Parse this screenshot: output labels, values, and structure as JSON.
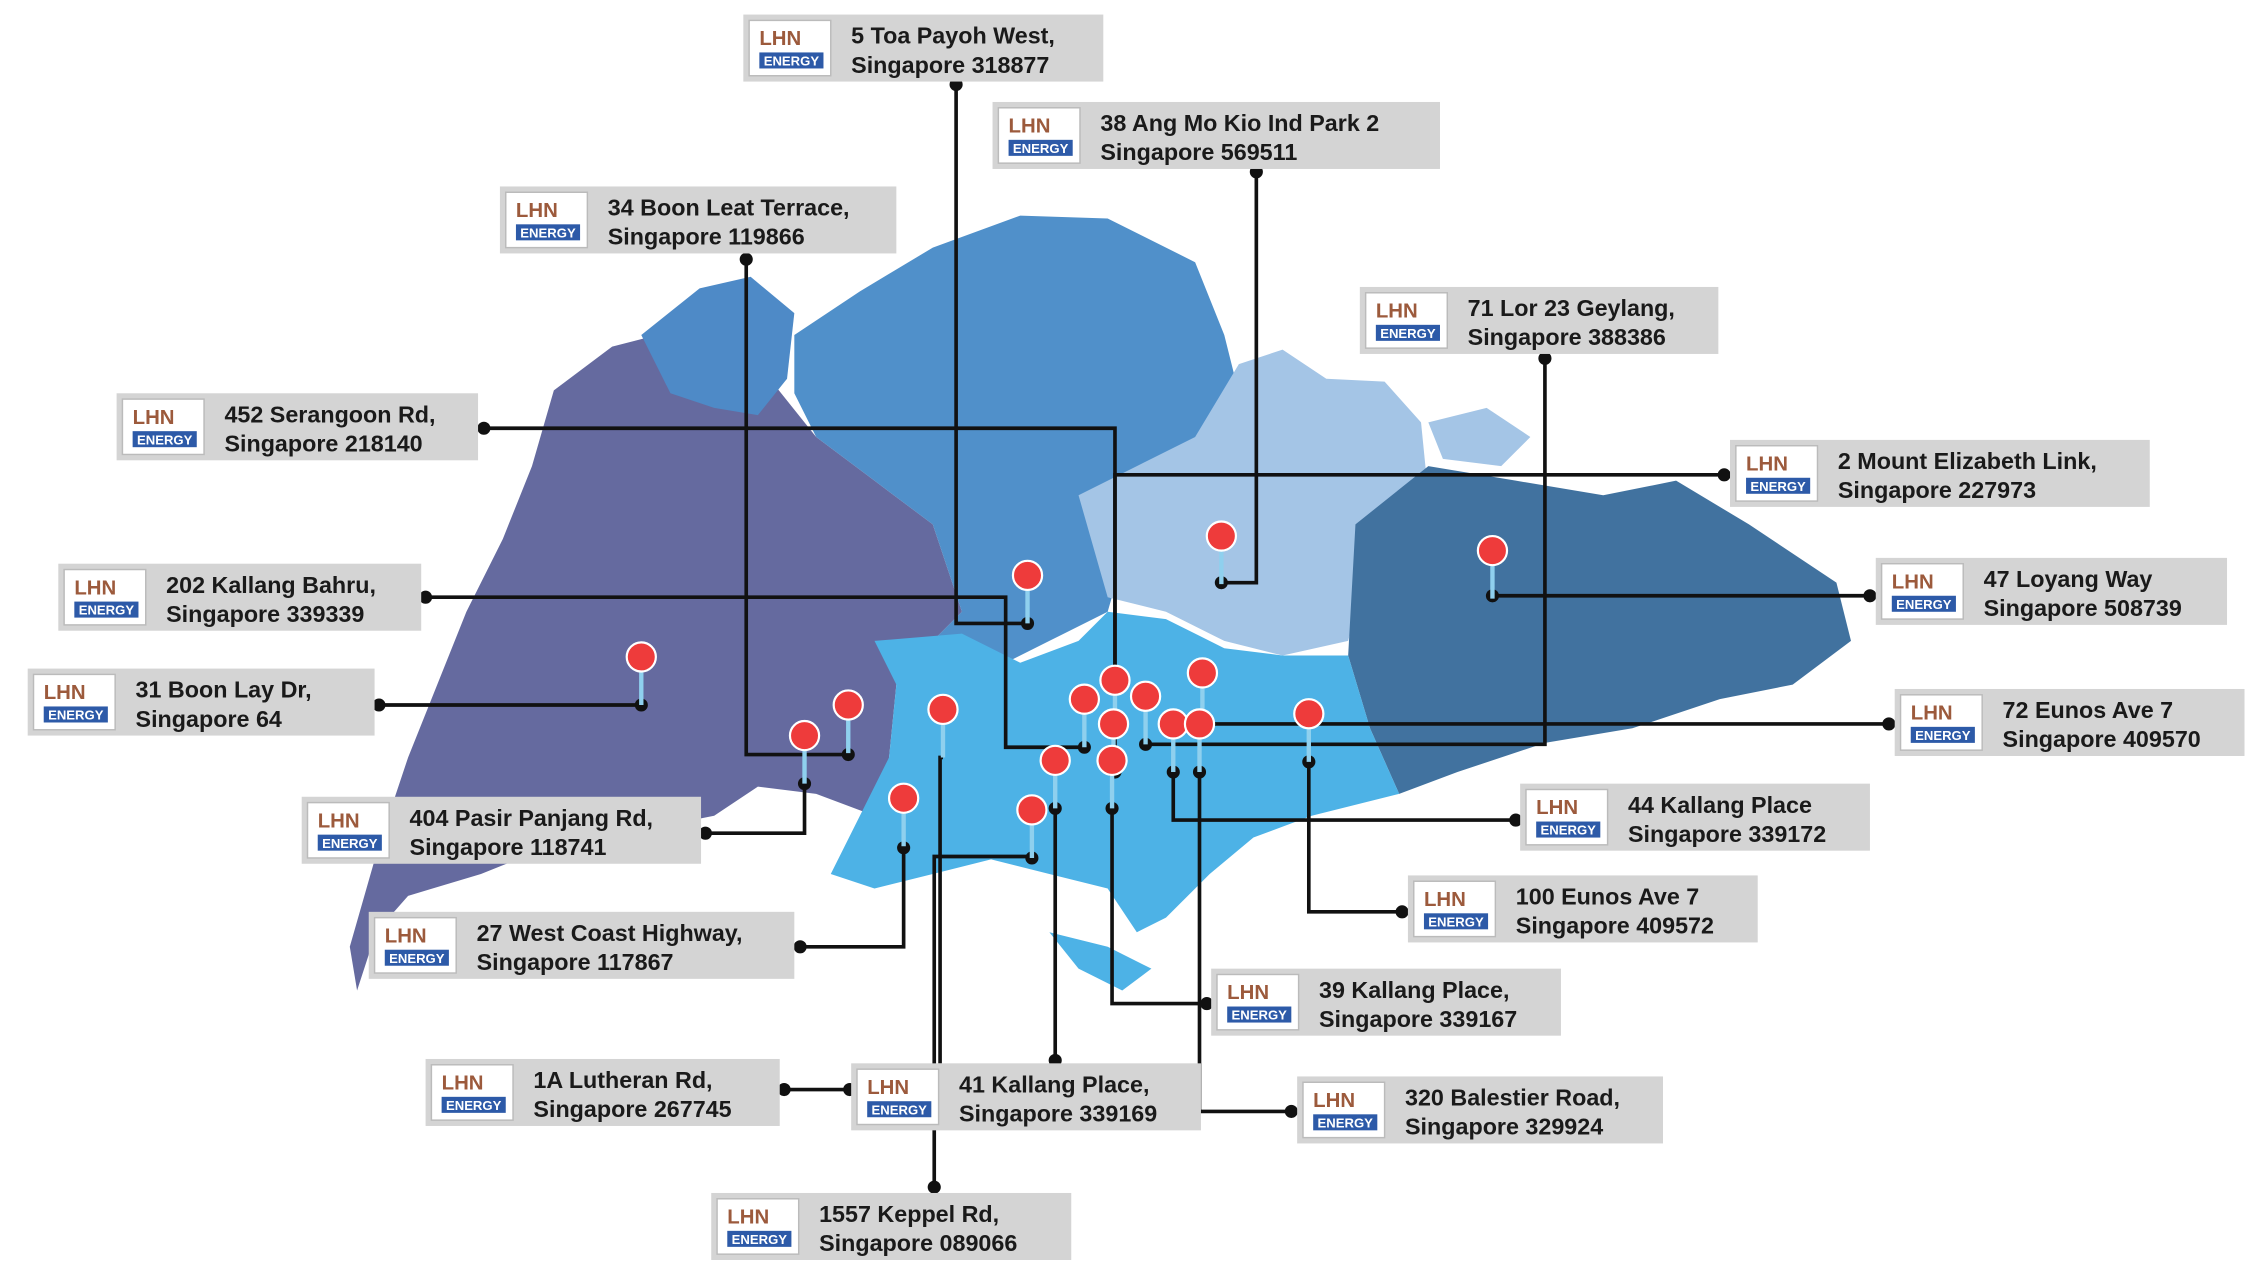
{
  "logo": {
    "top": "LHN",
    "bottom": "ENERGY"
  },
  "locations": [
    {
      "line1": "5 Toa Payoh West,",
      "line2": "Singapore 318877"
    },
    {
      "line1": "38 Ang Mo Kio Ind Park 2",
      "line2": "Singapore 569511"
    },
    {
      "line1": "34 Boon Leat Terrace,",
      "line2": "Singapore 119866"
    },
    {
      "line1": "71 Lor 23 Geylang,",
      "line2": "Singapore 388386"
    },
    {
      "line1": "452 Serangoon Rd,",
      "line2": "Singapore 218140"
    },
    {
      "line1": "2 Mount Elizabeth Link,",
      "line2": "Singapore 227973"
    },
    {
      "line1": "202 Kallang Bahru,",
      "line2": "Singapore 339339"
    },
    {
      "line1": "47 Loyang Way",
      "line2": "Singapore 508739"
    },
    {
      "line1": "31 Boon Lay Dr,",
      "line2": "Singapore 64"
    },
    {
      "line1": "72 Eunos Ave 7",
      "line2": "Singapore 409570"
    },
    {
      "line1": "404 Pasir Panjang Rd,",
      "line2": "Singapore 118741"
    },
    {
      "line1": "44 Kallang Place",
      "line2": "Singapore 339172"
    },
    {
      "line1": "100 Eunos Ave 7",
      "line2": "Singapore 409572"
    },
    {
      "line1": "27 West Coast Highway,",
      "line2": "Singapore 117867"
    },
    {
      "line1": "39 Kallang Place,",
      "line2": "Singapore 339167"
    },
    {
      "line1": "1A Lutheran Rd,",
      "line2": "Singapore 267745"
    },
    {
      "line1": "41 Kallang Place,",
      "line2": "Singapore 339169"
    },
    {
      "line1": "320 Balestier Road,",
      "line2": "Singapore 329924"
    },
    {
      "line1": "1557 Keppel Rd,",
      "line2": "Singapore 089066"
    }
  ]
}
